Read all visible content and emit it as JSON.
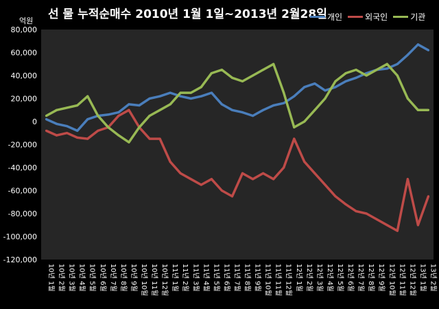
{
  "title": "선 물 누적순매수 2010년 1월 1일~2013년 2월28일",
  "unit": "억원",
  "legend": [
    {
      "name": "개인",
      "color": "#4a7ebb"
    },
    {
      "name": "외국인",
      "color": "#be4b48"
    },
    {
      "name": "기관",
      "color": "#98b954"
    }
  ],
  "chart_data": {
    "type": "line",
    "ylim": [
      -120000,
      80000
    ],
    "yticks": [
      "80,000",
      "60,000",
      "40,000",
      "20,000",
      "0",
      "-20,000",
      "-40,000",
      "-60,000",
      "-80,000",
      "-100,000",
      "-120,000"
    ],
    "ytick_values": [
      80000,
      60000,
      40000,
      20000,
      0,
      -20000,
      -40000,
      -60000,
      -80000,
      -100000,
      -120000
    ],
    "grid": false,
    "background": "#262626",
    "legend_position": "top-right",
    "categories": [
      "10년 1월",
      "10년 2월",
      "10년 3월",
      "10년 4월",
      "10년 5월",
      "10년 6월",
      "10년 7월",
      "10년 8월",
      "10년 9월",
      "10년 10월",
      "10년 11월",
      "10년 12월",
      "11년 1월",
      "11년 2월",
      "11년 3월",
      "11년 4월",
      "11년 5월",
      "11년 6월",
      "11년 7월",
      "11년 8월",
      "11년 9월",
      "11년 10월",
      "11년 11월",
      "11년 12월",
      "12년 1월",
      "12년 2월",
      "12년 3월",
      "12년 4월",
      "12년 5월",
      "12년 6월",
      "12년 7월",
      "12년 8월",
      "12년 9월",
      "12년 10월",
      "12년 11월",
      "12년 12월",
      "13년 1월",
      "13년 2월"
    ],
    "series": [
      {
        "name": "개인",
        "color": "#4a7ebb",
        "values": [
          2000,
          -2000,
          -4000,
          -8000,
          2000,
          5000,
          6000,
          8000,
          15000,
          14000,
          20000,
          22000,
          25000,
          22000,
          20000,
          22000,
          25000,
          15000,
          10000,
          8000,
          5000,
          10000,
          14000,
          16000,
          22000,
          30000,
          33000,
          27000,
          30000,
          35000,
          38000,
          42000,
          45000,
          46000,
          50000,
          58000,
          67000,
          62000
        ]
      },
      {
        "name": "외국인",
        "color": "#be4b48",
        "values": [
          -8000,
          -12000,
          -10000,
          -14000,
          -15000,
          -8000,
          -5000,
          5000,
          10000,
          -5000,
          -15000,
          -15000,
          -35000,
          -45000,
          -50000,
          -55000,
          -50000,
          -60000,
          -65000,
          -45000,
          -50000,
          -45000,
          -50000,
          -40000,
          -15000,
          -35000,
          -45000,
          -55000,
          -65000,
          -72000,
          -78000,
          -80000,
          -85000,
          -90000,
          -95000,
          -50000,
          -90000,
          -65000
        ]
      },
      {
        "name": "기관",
        "color": "#98b954",
        "values": [
          5000,
          10000,
          12000,
          14000,
          22000,
          5000,
          -5000,
          -12000,
          -18000,
          -5000,
          5000,
          10000,
          15000,
          25000,
          25000,
          30000,
          42000,
          45000,
          38000,
          35000,
          40000,
          45000,
          50000,
          25000,
          -5000,
          0,
          10000,
          20000,
          35000,
          42000,
          45000,
          40000,
          45000,
          50000,
          40000,
          20000,
          10000,
          10000
        ]
      }
    ]
  }
}
